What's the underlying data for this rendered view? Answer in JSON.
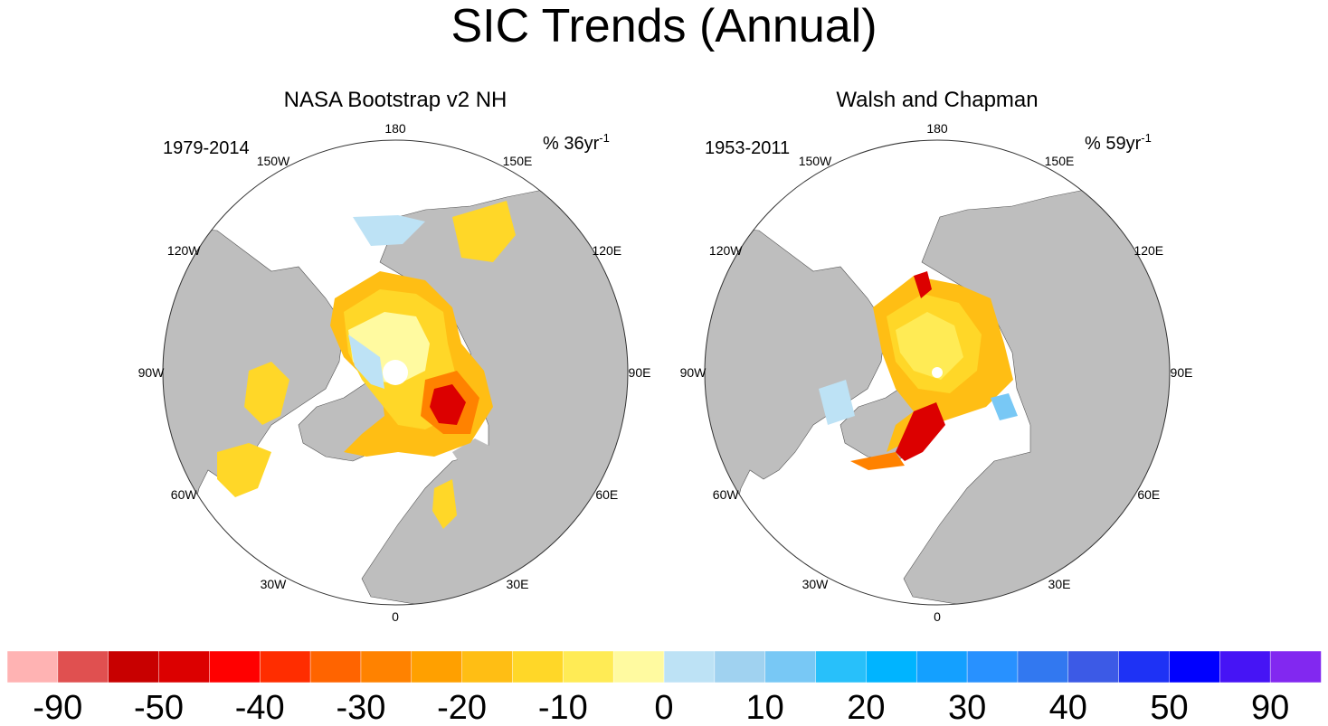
{
  "title": "SIC Trends (Annual)",
  "colors": {
    "land": "#bebebe",
    "ocean": "#ffffff",
    "boundary": "#333333",
    "colorbar": [
      "#ffb3b3",
      "#e05050",
      "#c80000",
      "#dc0000",
      "#ff0000",
      "#ff2d00",
      "#ff6400",
      "#ff8200",
      "#ffa000",
      "#ffbe14",
      "#ffd728",
      "#ffeb55",
      "#fffaa0",
      "#bde2f5",
      "#a0d2f0",
      "#78c8f5",
      "#28c0fa",
      "#00b4ff",
      "#14a0ff",
      "#2891ff",
      "#3278f0",
      "#3c5ae6",
      "#1e32f5",
      "#0000ff",
      "#4614f5",
      "#8228f0"
    ]
  },
  "panels": [
    {
      "title": "NASA Bootstrap v2 NH",
      "period": "1979-2014",
      "unit_prefix": "% 36yr",
      "unit_exp": "-1"
    },
    {
      "title": "Walsh and Chapman",
      "period": "1953-2011",
      "unit_prefix": "% 59yr",
      "unit_exp": "-1"
    }
  ],
  "lon_labels": [
    "180",
    "150E",
    "120E",
    "90E",
    "60E",
    "30E",
    "0",
    "30W",
    "60W",
    "90W",
    "120W",
    "150W"
  ],
  "colorbar_labels": [
    "-90",
    "-50",
    "-40",
    "-30",
    "-20",
    "-10",
    "0",
    "10",
    "20",
    "30",
    "40",
    "50",
    "90"
  ]
}
